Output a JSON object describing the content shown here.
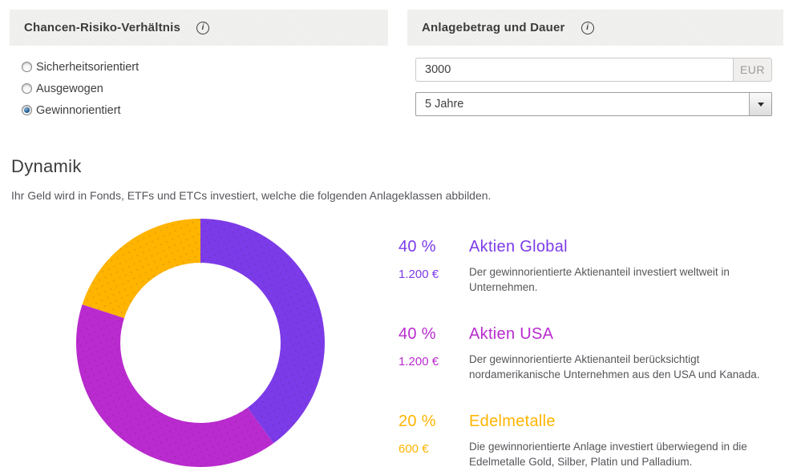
{
  "colors": {
    "accent_purple": "#7C3BE8",
    "accent_magenta": "#B92BCE",
    "accent_yellow": "#FFB400",
    "header_background": "#F1F1EF",
    "text_dark": "#3C3C3B",
    "text_gray": "#55565A"
  },
  "risk_panel": {
    "title": "Chancen-Risiko-Verhältnis",
    "info_icon": "info-icon",
    "options": [
      {
        "label": "Sicherheitsorientiert",
        "selected": false
      },
      {
        "label": "Ausgewogen",
        "selected": false
      },
      {
        "label": "Gewinnorientiert",
        "selected": true
      }
    ]
  },
  "amount_panel": {
    "title": "Anlagebetrag und Dauer",
    "info_icon": "info-icon",
    "amount_value": "3000",
    "currency_label": "EUR",
    "duration_value": "5 Jahre"
  },
  "strategy": {
    "title": "Dynamik",
    "subtitle": "Ihr Geld wird in Fonds, ETFs und ETCs investiert, welche die folgenden Anlageklassen abbilden."
  },
  "chart_data": {
    "type": "pie",
    "variant": "donut",
    "start_angle_deg": 0,
    "direction": "clockwise",
    "categories": [
      "Aktien Global",
      "Aktien USA",
      "Edelmetalle"
    ],
    "values": [
      40,
      40,
      20
    ],
    "amounts_eur": [
      1200,
      1200,
      600
    ],
    "colors": [
      "#7C3BE8",
      "#B92BCE",
      "#FFB400"
    ],
    "inner_radius_ratio": 0.645,
    "legend_position": "right"
  },
  "legend": {
    "items": [
      {
        "percent": "40 %",
        "amount": "1.200 €",
        "title": "Aktien Global",
        "description": "Der gewinnorientierte Aktienanteil investiert weltweit in Unternehmen.",
        "color": "#7C3BE8"
      },
      {
        "percent": "40 %",
        "amount": "1.200 €",
        "title": "Aktien USA",
        "description": "Der gewinnorientierte Aktienanteil berücksichtigt nordamerikanische Unternehmen aus den USA und Kanada.",
        "color": "#B92BCE"
      },
      {
        "percent": "20 %",
        "amount": "600 €",
        "title": "Edelmetalle",
        "description": "Die gewinnorientierte Anlage investiert überwiegend in die Edelmetalle Gold, Silber, Platin und Palladium.",
        "color": "#FFB400"
      }
    ]
  }
}
